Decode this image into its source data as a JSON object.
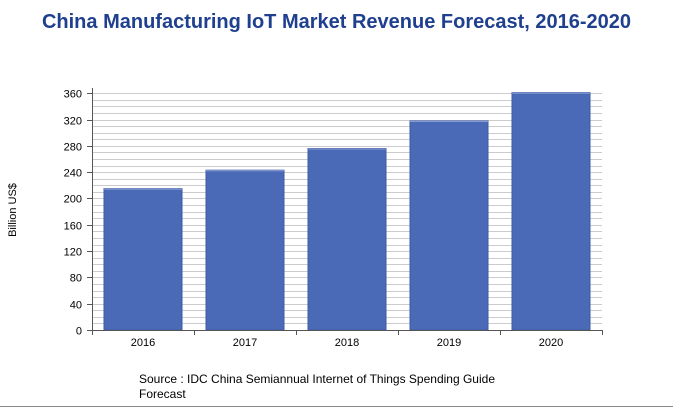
{
  "chart_data": {
    "type": "bar",
    "title": "China Manufacturing IoT Market Revenue Forecast, 2016-2020",
    "xlabel": "",
    "ylabel": "Billion US$",
    "categories": [
      "2016",
      "2017",
      "2018",
      "2019",
      "2020"
    ],
    "values": [
      215,
      243,
      276,
      318,
      361
    ],
    "ylim": [
      0,
      368
    ],
    "yticks": [
      0,
      40,
      80,
      120,
      160,
      200,
      240,
      280,
      320,
      360
    ],
    "grid": true,
    "legend": "none",
    "bar_color": "#4a6ab8"
  },
  "source_note": "Source : IDC China Semiannual Internet of Things Spending Guide Forecast"
}
